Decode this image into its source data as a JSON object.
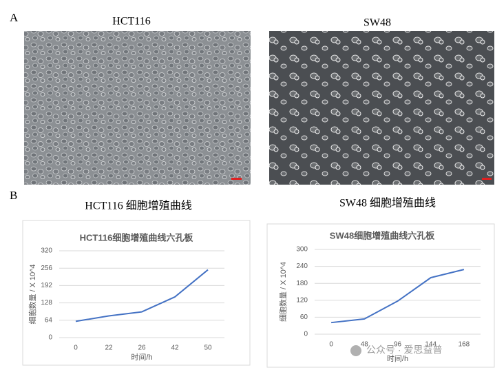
{
  "panel_labels": [
    "A",
    "B"
  ],
  "image_captions": [
    "HCT116",
    "SW48"
  ],
  "chart_headings": [
    "HCT116 细胞增殖曲线",
    "SW48 细胞增殖曲线"
  ],
  "watermark": "公众号 · 爱思益普",
  "chart_data": [
    {
      "type": "line",
      "title": "HCT116细胞增殖曲线六孔板",
      "x_label": "时间/h",
      "y_label": "细胞数量 / X 10^4",
      "categories": [
        "0",
        "22",
        "26",
        "42",
        "50"
      ],
      "values": [
        60,
        80,
        95,
        150,
        250
      ],
      "color": "#4472c4",
      "ylim": [
        0,
        320
      ],
      "yticks": [
        0,
        64,
        128,
        192,
        256,
        320
      ],
      "grid": true
    },
    {
      "type": "line",
      "title": "SW48细胞增殖曲线六孔板",
      "x_label": "时间/h",
      "y_label": "细胞数量 / X 10^4",
      "categories": [
        "0",
        "48",
        "96",
        "144",
        "168"
      ],
      "values": [
        41,
        54,
        117,
        200,
        229
      ],
      "color": "#4472c4",
      "ylim": [
        0,
        300
      ],
      "yticks": [
        0,
        60,
        120,
        180,
        240,
        300
      ],
      "grid": true
    }
  ]
}
